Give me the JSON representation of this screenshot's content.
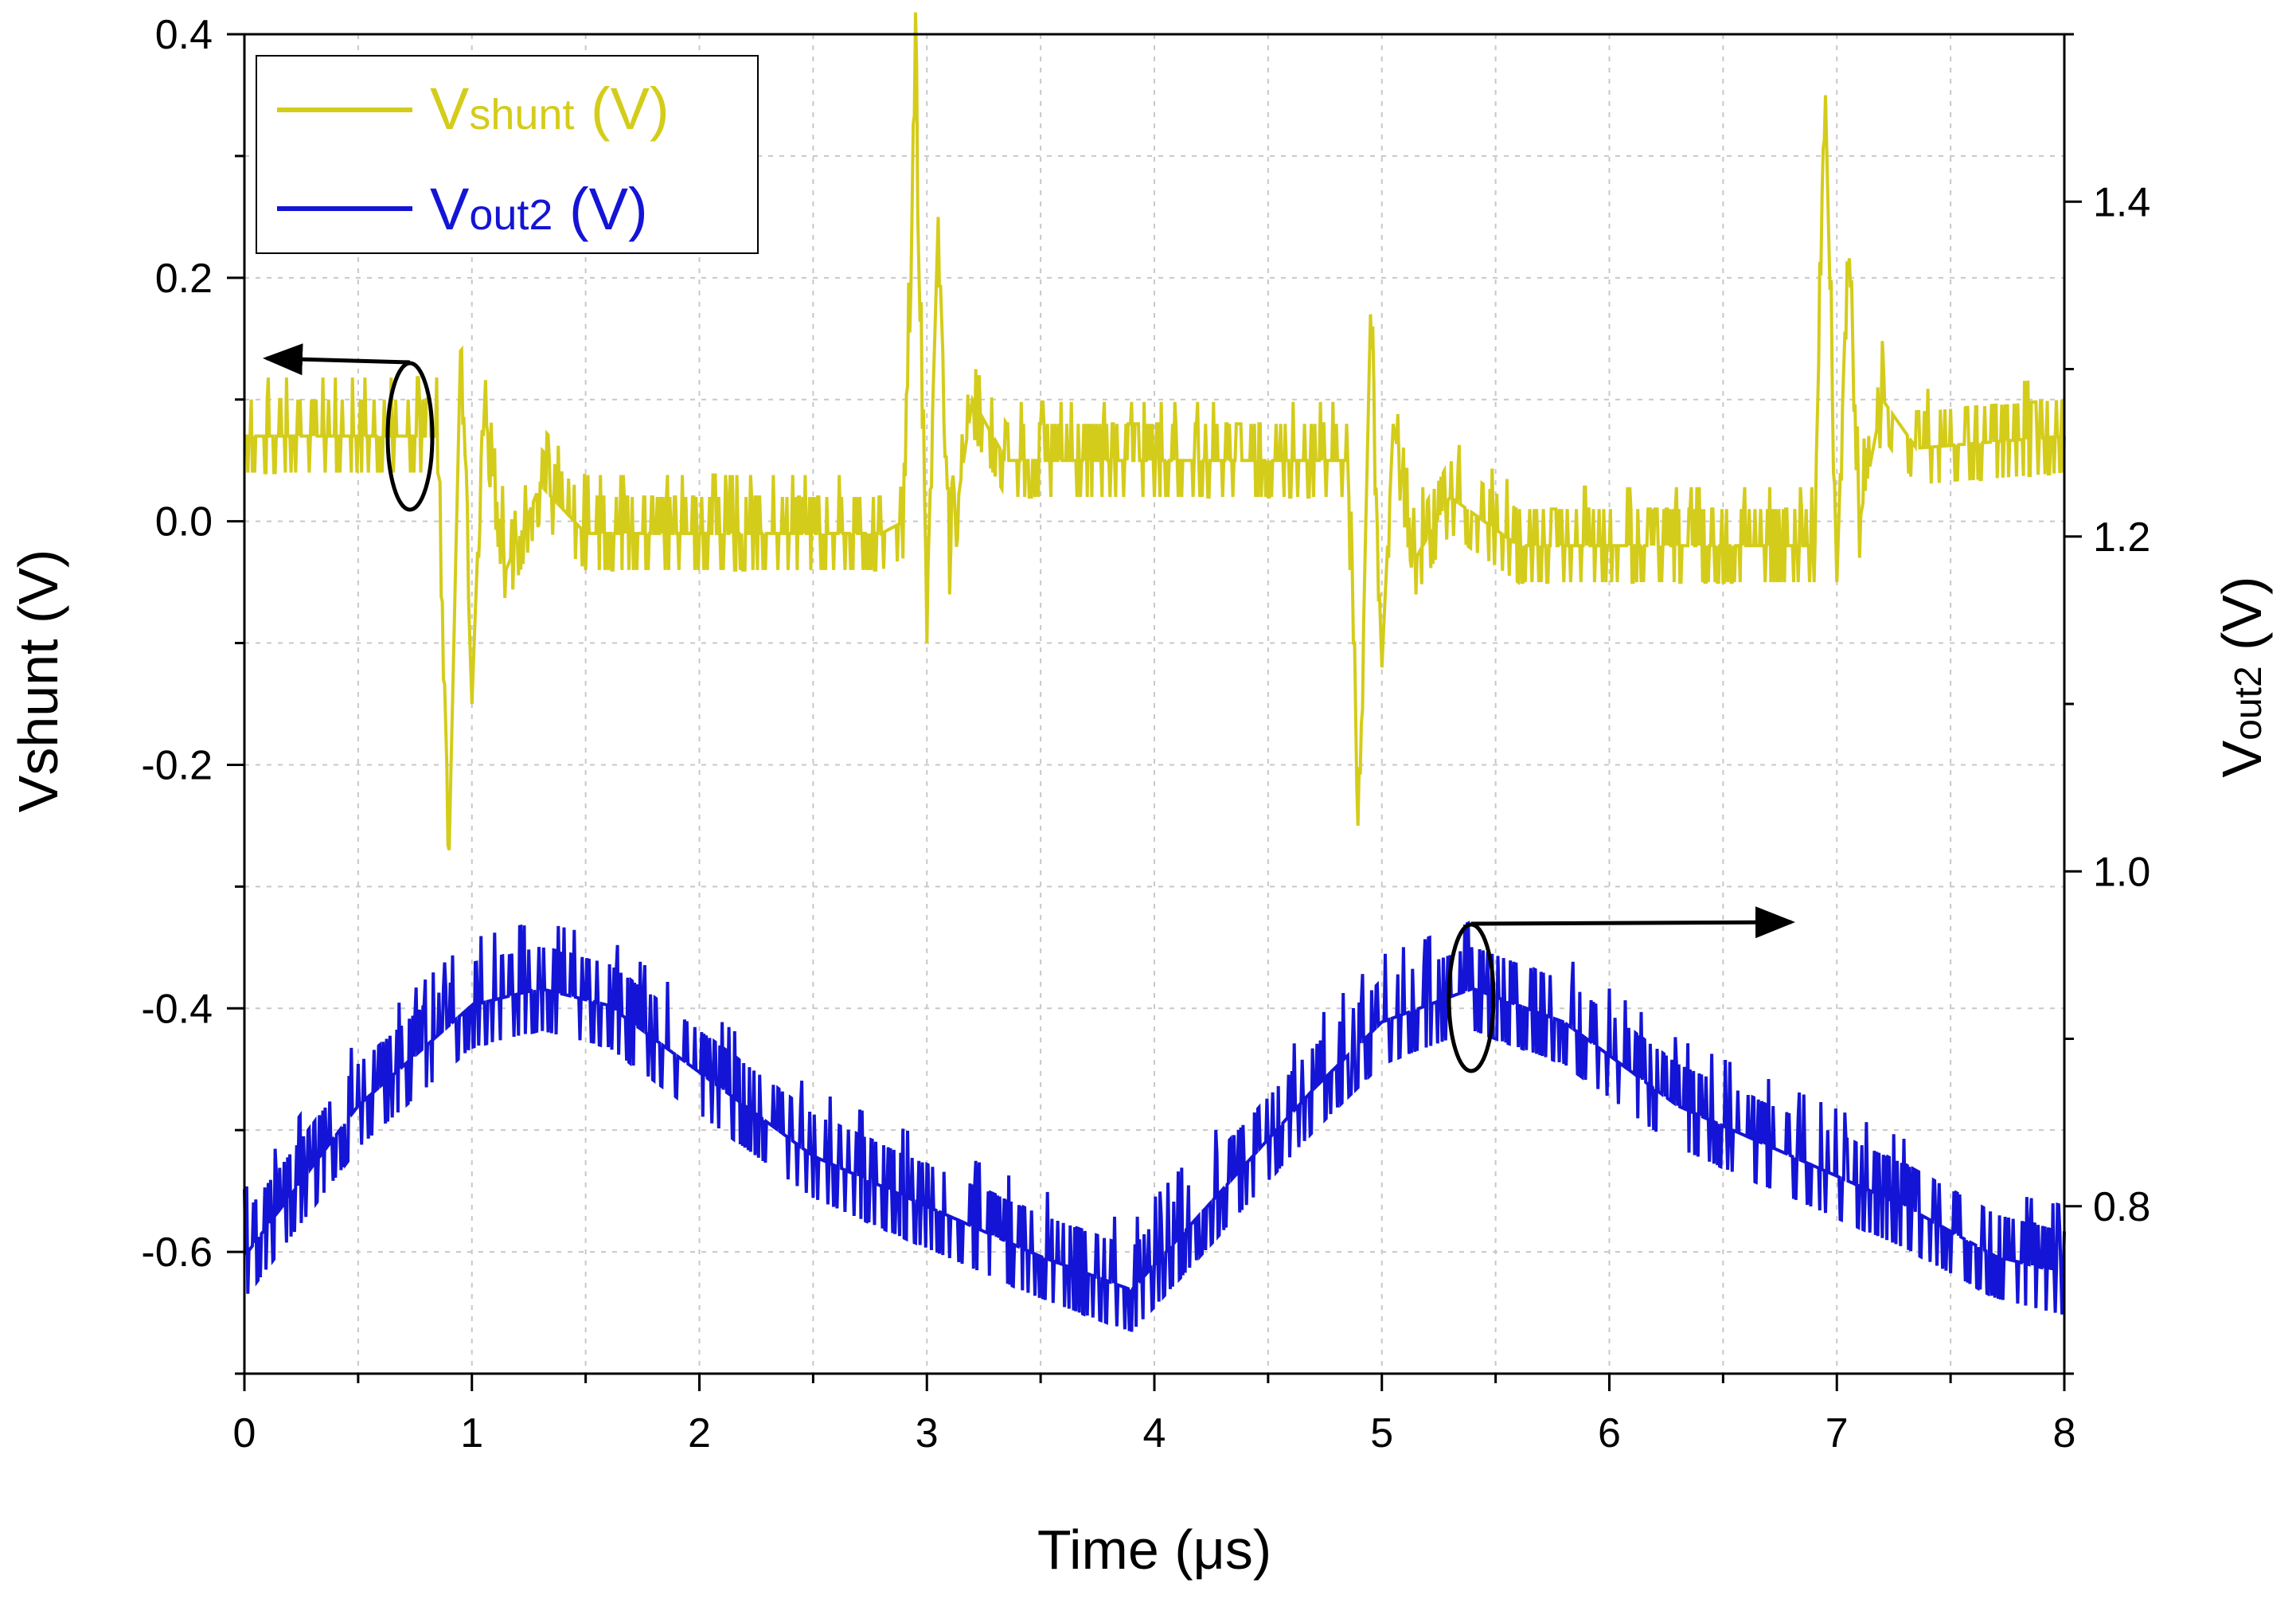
{
  "chart_data": {
    "type": "line",
    "title": "",
    "xlabel": "Time (μs)",
    "ylabel_left": "Vshunt (V)",
    "ylabel_right_main": "V",
    "ylabel_right_sub": "out2",
    "ylabel_right_unit": " (V)",
    "xlim": [
      0,
      8
    ],
    "ylim_left": [
      -0.7,
      0.4
    ],
    "ylim_right": [
      0.7,
      1.5
    ],
    "x_ticks": [
      "0",
      "1",
      "2",
      "3",
      "4",
      "5",
      "6",
      "7",
      "8"
    ],
    "y_left_ticks": [
      "0.4",
      "0.2",
      "0.0",
      "-0.2",
      "-0.4",
      "-0.6"
    ],
    "y_left_tick_values": [
      0.4,
      0.2,
      0.0,
      -0.2,
      -0.4,
      -0.6
    ],
    "y_right_ticks": [
      "1.4",
      "1.2",
      "1.0",
      "0.8"
    ],
    "y_right_tick_values": [
      1.4,
      1.2,
      1.0,
      0.8
    ],
    "grid": true,
    "legend_position": "top-left",
    "series": [
      {
        "name": "Vshunt (V)",
        "legend_main": "V",
        "legend_sub": "shunt",
        "legend_unit": " (V)",
        "axis": "left",
        "color": "#d4cc1a",
        "noise": 0.03,
        "anchors": [
          [
            0,
            0.07
          ],
          [
            0.85,
            0.07
          ],
          [
            0.9,
            -0.27
          ],
          [
            0.95,
            0.14
          ],
          [
            1.0,
            -0.15
          ],
          [
            1.05,
            0.1
          ],
          [
            1.15,
            -0.04
          ],
          [
            1.3,
            0.03
          ],
          [
            1.5,
            -0.01
          ],
          [
            2.0,
            -0.01
          ],
          [
            2.8,
            -0.01
          ],
          [
            2.9,
            0.0
          ],
          [
            2.95,
            0.37
          ],
          [
            3.0,
            -0.07
          ],
          [
            3.05,
            0.25
          ],
          [
            3.1,
            -0.03
          ],
          [
            3.2,
            0.1
          ],
          [
            3.35,
            0.05
          ],
          [
            4.0,
            0.05
          ],
          [
            4.85,
            0.05
          ],
          [
            4.9,
            -0.25
          ],
          [
            4.95,
            0.17
          ],
          [
            5.0,
            -0.12
          ],
          [
            5.05,
            0.08
          ],
          [
            5.15,
            -0.03
          ],
          [
            5.3,
            0.02
          ],
          [
            5.6,
            -0.02
          ],
          [
            6.9,
            -0.02
          ],
          [
            6.95,
            0.35
          ],
          [
            7.0,
            -0.05
          ],
          [
            7.05,
            0.24
          ],
          [
            7.1,
            0.0
          ],
          [
            7.2,
            0.1
          ],
          [
            7.35,
            0.06
          ],
          [
            8.0,
            0.07
          ]
        ]
      },
      {
        "name": "Vout2 (V)",
        "legend_main": "V",
        "legend_sub": "out2",
        "legend_unit": " (V)",
        "axis": "right",
        "color": "#1414d6",
        "noise": 0.025,
        "anchors": [
          [
            0,
            0.77
          ],
          [
            0.5,
            0.86
          ],
          [
            1.0,
            0.92
          ],
          [
            1.3,
            0.93
          ],
          [
            1.6,
            0.92
          ],
          [
            2.0,
            0.88
          ],
          [
            2.5,
            0.83
          ],
          [
            3.0,
            0.8
          ],
          [
            3.5,
            0.77
          ],
          [
            3.9,
            0.75
          ],
          [
            4.3,
            0.81
          ],
          [
            4.7,
            0.87
          ],
          [
            5.0,
            0.91
          ],
          [
            5.4,
            0.93
          ],
          [
            5.8,
            0.91
          ],
          [
            6.3,
            0.86
          ],
          [
            6.8,
            0.83
          ],
          [
            7.3,
            0.8
          ],
          [
            7.7,
            0.77
          ],
          [
            8.0,
            0.76
          ]
        ]
      }
    ],
    "annotations": [
      {
        "marker": "ellipse",
        "arrow": "left",
        "points_to": "Vshunt axis"
      },
      {
        "marker": "ellipse",
        "arrow": "right",
        "points_to": "Vout2 axis"
      }
    ]
  }
}
